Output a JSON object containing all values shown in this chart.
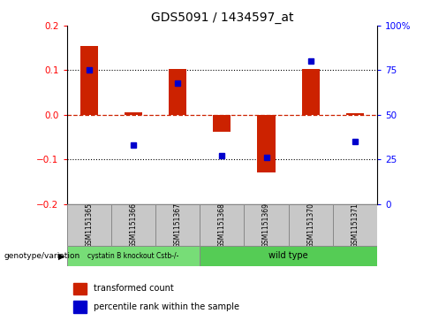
{
  "title": "GDS5091 / 1434597_at",
  "samples": [
    "GSM1151365",
    "GSM1151366",
    "GSM1151367",
    "GSM1151368",
    "GSM1151369",
    "GSM1151370",
    "GSM1151371"
  ],
  "red_values": [
    0.155,
    0.005,
    0.102,
    -0.038,
    -0.13,
    0.102,
    0.003
  ],
  "blue_values_pct": [
    75,
    33,
    68,
    27,
    26,
    80,
    35
  ],
  "group1_indices": [
    0,
    1,
    2
  ],
  "group2_indices": [
    3,
    4,
    5,
    6
  ],
  "group1_label": "cystatin B knockout Cstb-/-",
  "group2_label": "wild type",
  "group1_color": "#77dd77",
  "group2_color": "#55cc55",
  "bar_color": "#cc2200",
  "dot_color": "#0000cc",
  "ylim_left": [
    -0.2,
    0.2
  ],
  "ylim_right": [
    0,
    100
  ],
  "bg_color": "#ffffff",
  "plot_bg": "#ffffff",
  "zero_line_color": "#cc2200",
  "legend_red": "transformed count",
  "legend_blue": "percentile rank within the sample",
  "genotype_label": "genotype/variation",
  "sample_box_color": "#c8c8c8",
  "bar_width": 0.4
}
